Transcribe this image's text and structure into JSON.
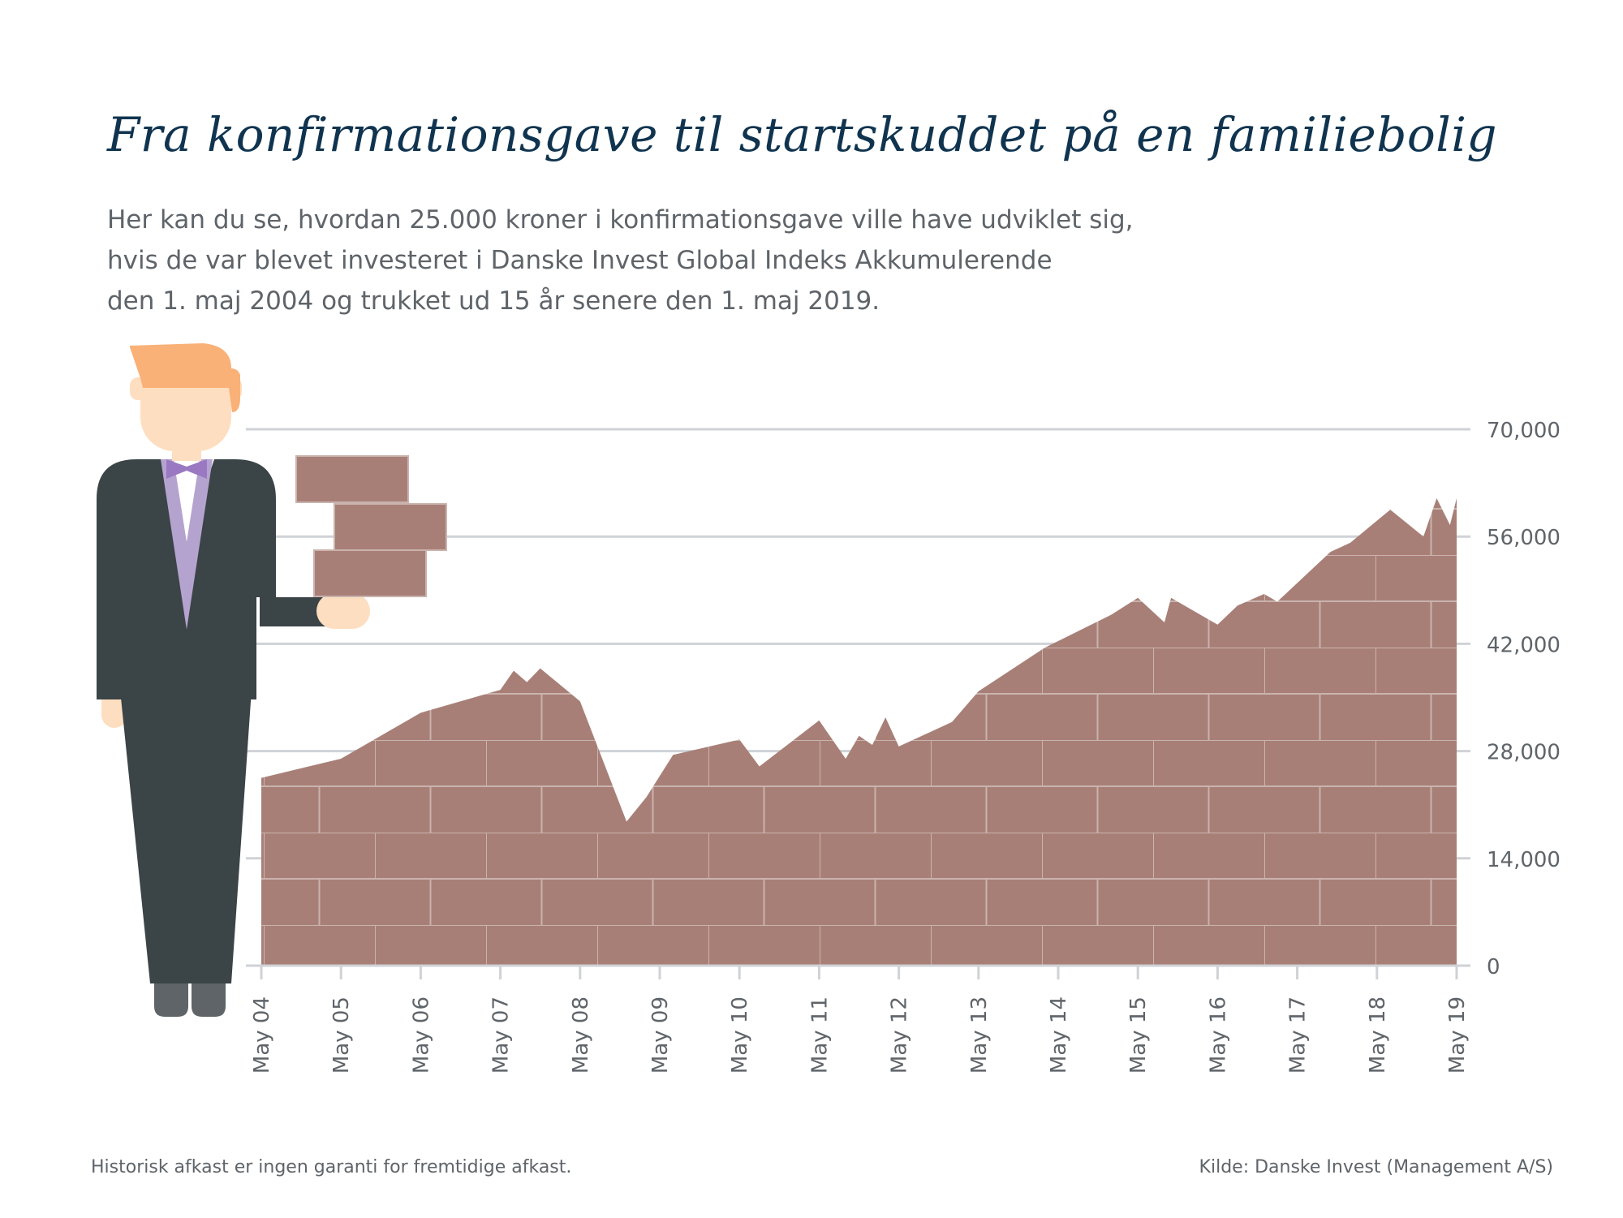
{
  "header": {
    "title": "Fra konfirmationsgave til startskuddet på en familiebolig",
    "subtitle_lines": [
      "Her kan du se, hvordan 25.000 kroner i konfirmationsgave ville have udviklet sig,",
      "hvis de var blevet investeret i Danske Invest Global Indeks Akkumulerende",
      "den 1. maj 2004 og trukket ud 15 år senere den 1. maj 2019."
    ]
  },
  "footer": {
    "disclaimer": "Historisk afkast er ingen garanti for fremtidige afkast.",
    "source": "Kilde: Danske Invest (Management A/S)"
  },
  "colors": {
    "brick": "#a87f77",
    "mortar": "#c9b3ad",
    "grid": "#cfd2d6",
    "text": "#5e6469",
    "title": "#10344f",
    "suit": "#3b4446",
    "vest": "#b5a3cf",
    "tie": "#9a79c2",
    "hair": "#f9b177",
    "skin": "#fedec0",
    "shoes": "#5e6467"
  },
  "illustration": {
    "figure": "man-in-suit-holding-bricks",
    "icon": "person-icon"
  },
  "chart_data": {
    "type": "area",
    "style": "brick-wall-fill",
    "title": "",
    "xlabel": "",
    "ylabel": "",
    "ylim": [
      0,
      70000
    ],
    "grid": true,
    "yaxis_position": "right",
    "x_tick_labels": [
      "May 04",
      "May 05",
      "May 06",
      "May 07",
      "May 08",
      "May 09",
      "May 10",
      "May 11",
      "May 12",
      "May 13",
      "May 14",
      "May 15",
      "May 16",
      "May 17",
      "May 18",
      "May 19"
    ],
    "y_tick_labels": [
      "0",
      "14,000",
      "28,000",
      "42,000",
      "56,000",
      "70,000"
    ],
    "y_ticks": [
      0,
      14000,
      28000,
      42000,
      56000,
      70000
    ],
    "series": [
      {
        "x": [
          "2004-05",
          "2005-05",
          "2006-05",
          "2007-05",
          "2007-07",
          "2007-09",
          "2007-11",
          "2008-05",
          "2008-12",
          "2009-03",
          "2009-07",
          "2010-05",
          "2010-08",
          "2011-05",
          "2011-09",
          "2011-11",
          "2012-01",
          "2012-03",
          "2012-05",
          "2013-01",
          "2013-05",
          "2014-03",
          "2015-01",
          "2015-05",
          "2015-09",
          "2015-10",
          "2016-05",
          "2016-08",
          "2016-12",
          "2017-02",
          "2017-10",
          "2018-01",
          "2018-07",
          "2018-12",
          "2019-02",
          "2019-04",
          "2019-05"
        ],
        "values": [
          24500,
          27000,
          33000,
          36000,
          38500,
          37000,
          38800,
          34500,
          18800,
          22000,
          27500,
          29500,
          26000,
          32000,
          27000,
          30000,
          28800,
          32400,
          28600,
          31800,
          35800,
          41500,
          45800,
          48000,
          44800,
          48000,
          44500,
          47000,
          48500,
          47500,
          54000,
          55200,
          59500,
          56000,
          61000,
          57500,
          61000
        ]
      }
    ]
  }
}
